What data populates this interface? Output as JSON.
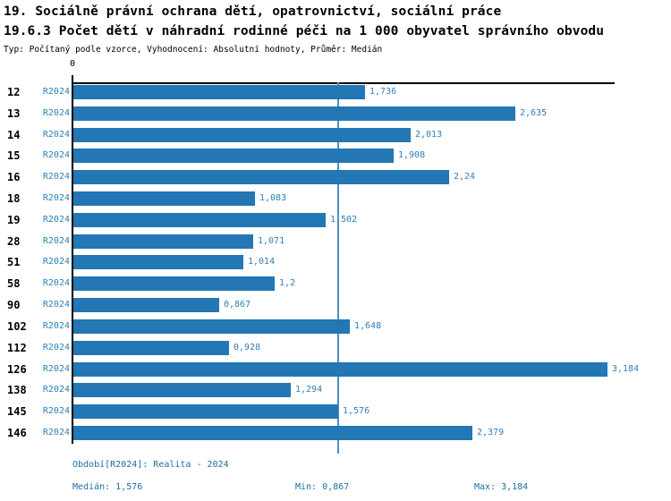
{
  "header": {
    "title_line1": "19. Sociálně právní ochrana dětí, opatrovnictví, sociální práce",
    "title_line2": "19.6.3 Počet dětí v náhradní rodinné péči na 1 000 obyvatel správního obvodu",
    "meta": "Typ: Počítaný podle vzorce, Vyhodnocení: Absolutní hodnoty, Průměr: Medián"
  },
  "chart_data": {
    "type": "bar",
    "orientation": "horizontal",
    "categories": [
      "12",
      "13",
      "14",
      "15",
      "16",
      "18",
      "19",
      "28",
      "51",
      "58",
      "90",
      "102",
      "112",
      "126",
      "138",
      "145",
      "146"
    ],
    "series_label": "R2024",
    "values": [
      1.736,
      2.635,
      2.013,
      1.908,
      2.24,
      1.083,
      1.502,
      1.071,
      1.014,
      1.2,
      0.867,
      1.648,
      0.928,
      3.184,
      1.294,
      1.576,
      2.379
    ],
    "value_labels": [
      "1,736",
      "2,635",
      "2,013",
      "1,908",
      "2,24",
      "1,083",
      "1,502",
      "1,071",
      "1,014",
      "1,2",
      "0,867",
      "1,648",
      "0,928",
      "3,184",
      "1,294",
      "1,576",
      "2,379"
    ],
    "x_tick_labels": [
      "0"
    ],
    "xlim": [
      0,
      3.23
    ],
    "grid": false,
    "legend": "none",
    "median_value": 1.576,
    "colors": {
      "bar": "#2277b4",
      "value_text": "#2e7fb8",
      "series_text": "#2e7fb8",
      "median_line": "#4a92c3",
      "axis": "#000000",
      "footer_text": "#1d6f9f"
    }
  },
  "footer": {
    "period": "Období[R2024]: Realita - 2024",
    "median": "Medián: 1,576",
    "min": "Min: 0,867",
    "max": "Max: 3,184"
  }
}
